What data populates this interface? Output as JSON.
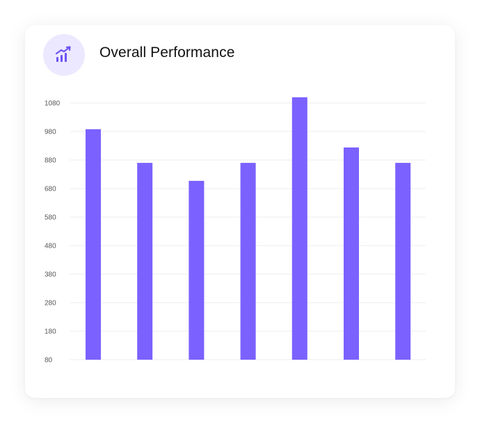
{
  "card": {
    "title": "Overall Performance",
    "icon": "trending-up-chart-icon"
  },
  "colors": {
    "bar": "#7B61FF",
    "icon": "#6C54F5",
    "icon_bg": "#ECE8FF",
    "grid": "#ECECEC",
    "tick_text": "#555555"
  },
  "chart_data": {
    "type": "bar",
    "title": "Overall Performance",
    "xlabel": "",
    "ylabel": "",
    "y_ticks": [
      80,
      180,
      280,
      380,
      480,
      580,
      680,
      880,
      980,
      1080
    ],
    "tick_labels": [
      "80",
      "180",
      "280",
      "380",
      "480",
      "580",
      "680",
      "880",
      "980",
      "1080"
    ],
    "grid": true,
    "values": [
      988,
      860,
      734,
      860,
      1100,
      924,
      860
    ]
  }
}
